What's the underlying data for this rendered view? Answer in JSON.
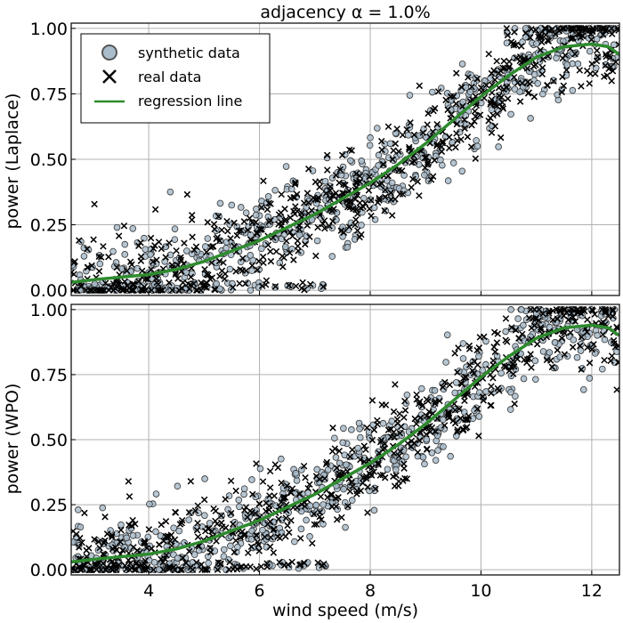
{
  "chart_data": [
    {
      "type": "scatter",
      "title": "adjacency α = 1.0%",
      "xlabel": "",
      "ylabel": "power (Laplace)",
      "xlim": [
        2.6,
        12.5
      ],
      "ylim": [
        -0.02,
        1.02
      ],
      "xticks": [
        4,
        6,
        8,
        10,
        12
      ],
      "yticks": [
        0.0,
        0.25,
        0.5,
        0.75,
        1.0
      ],
      "xtick_labels": [
        "4",
        "6",
        "8",
        "10",
        "12"
      ],
      "ytick_labels": [
        "0.00",
        "0.25",
        "0.50",
        "0.75",
        "1.00"
      ],
      "show_xtick_labels": false,
      "grid": true,
      "legend": {
        "placement": "top-left",
        "entries": [
          "synthetic data",
          "real data",
          "regression line"
        ]
      },
      "series": [
        {
          "name": "synthetic data",
          "kind": "scatter",
          "marker": "circle",
          "color": "#a9bccb",
          "edge_color": "#333333",
          "count": 650
        },
        {
          "name": "real data",
          "kind": "scatter",
          "marker": "x",
          "color": "#000000",
          "count": 650
        },
        {
          "name": "regression line",
          "kind": "line",
          "color": "#2e8b2e",
          "x": [
            2.6,
            3.0,
            3.5,
            4.0,
            4.5,
            5.0,
            5.5,
            6.0,
            6.5,
            7.0,
            7.5,
            8.0,
            8.5,
            9.0,
            9.5,
            10.0,
            10.5,
            11.0,
            11.5,
            12.0,
            12.3,
            12.5
          ],
          "y": [
            0.03,
            0.04,
            0.05,
            0.06,
            0.08,
            0.11,
            0.15,
            0.19,
            0.24,
            0.29,
            0.35,
            0.41,
            0.48,
            0.56,
            0.65,
            0.74,
            0.82,
            0.89,
            0.93,
            0.94,
            0.93,
            0.9
          ]
        }
      ]
    },
    {
      "type": "scatter",
      "title": "",
      "xlabel": "wind speed (m/s)",
      "ylabel": "power (WPO)",
      "xlim": [
        2.6,
        12.5
      ],
      "ylim": [
        -0.02,
        1.02
      ],
      "xticks": [
        4,
        6,
        8,
        10,
        12
      ],
      "yticks": [
        0.0,
        0.25,
        0.5,
        0.75,
        1.0
      ],
      "xtick_labels": [
        "4",
        "6",
        "8",
        "10",
        "12"
      ],
      "ytick_labels": [
        "0.00",
        "0.25",
        "0.50",
        "0.75",
        "1.00"
      ],
      "show_xtick_labels": true,
      "grid": true,
      "series": [
        {
          "name": "synthetic data",
          "kind": "scatter",
          "marker": "circle",
          "color": "#a9bccb",
          "edge_color": "#333333",
          "count": 650
        },
        {
          "name": "real data",
          "kind": "scatter",
          "marker": "x",
          "color": "#000000",
          "count": 650
        },
        {
          "name": "regression line",
          "kind": "line",
          "color": "#2e8b2e",
          "x": [
            2.6,
            3.0,
            3.5,
            4.0,
            4.5,
            5.0,
            5.5,
            6.0,
            6.5,
            7.0,
            7.5,
            8.0,
            8.5,
            9.0,
            9.5,
            10.0,
            10.5,
            11.0,
            11.5,
            12.0,
            12.3,
            12.5
          ],
          "y": [
            0.03,
            0.04,
            0.05,
            0.06,
            0.08,
            0.11,
            0.15,
            0.19,
            0.24,
            0.29,
            0.35,
            0.41,
            0.48,
            0.56,
            0.65,
            0.74,
            0.82,
            0.89,
            0.93,
            0.94,
            0.93,
            0.9
          ]
        }
      ]
    }
  ]
}
